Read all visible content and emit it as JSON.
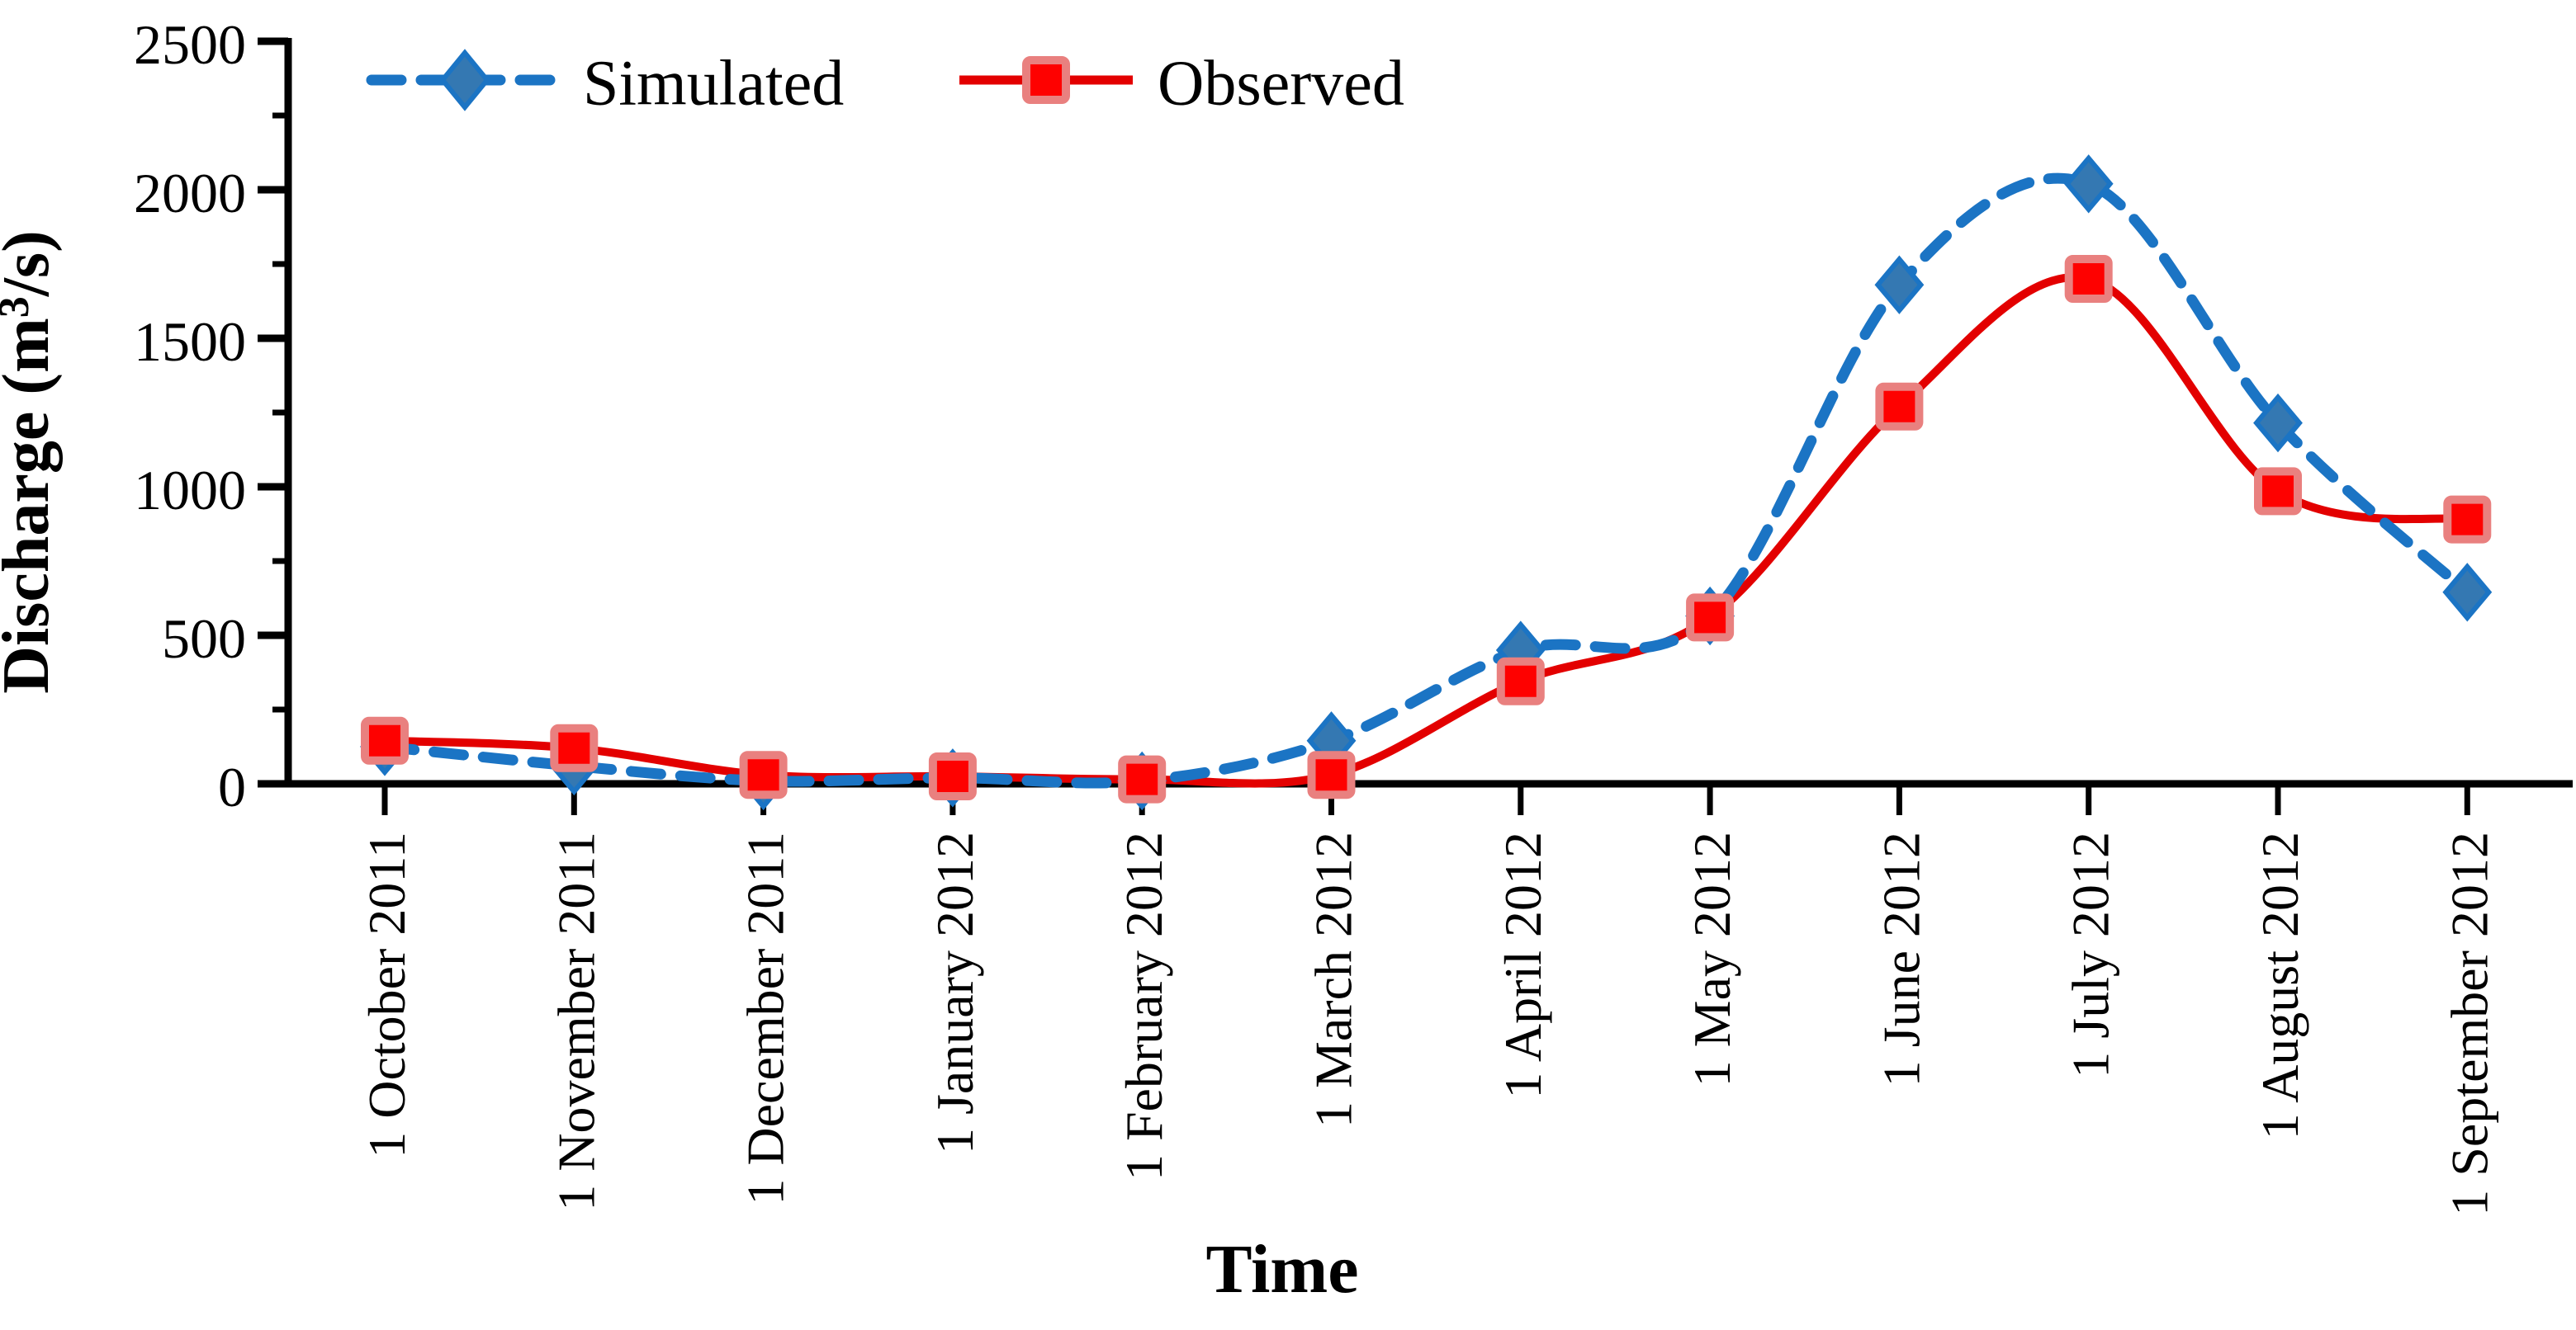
{
  "axes": {
    "y_title_parts": [
      "Discharge (m",
      "3",
      "/s)"
    ],
    "x_title": "Time"
  },
  "legend": {
    "position": "top",
    "items": [
      {
        "label": "Simulated"
      },
      {
        "label": "Observed"
      }
    ]
  },
  "chart_data": {
    "type": "line",
    "title": "",
    "xlabel": "Time",
    "ylabel": "Discharge (m³/s)",
    "ylim": [
      0,
      2500
    ],
    "y_major_ticks": [
      0,
      500,
      1000,
      1500,
      2000,
      2500
    ],
    "y_minor_ticks": [
      250,
      750,
      1250,
      1750,
      2250
    ],
    "grid": false,
    "legend_position": "top",
    "categories": [
      "1 October 2011",
      "1 November 2011",
      "1 December 2011",
      "1 January 2012",
      "1 February 2012",
      "1 March 2012",
      "1 April 2012",
      "1 May 2012",
      "1 June 2012",
      "1 July 2012",
      "1 August 2012",
      "1 September 2012"
    ],
    "series": [
      {
        "name": "Simulated",
        "line_style": "dashed",
        "marker": "diamond",
        "color": "#1B74C4",
        "marker_fill": "#3478B2",
        "marker_stroke": "#1B74C4",
        "values": [
          125,
          60,
          10,
          20,
          10,
          145,
          450,
          565,
          1680,
          2020,
          1215,
          645
        ]
      },
      {
        "name": "Observed",
        "line_style": "solid",
        "marker": "square",
        "color": "#E30000",
        "marker_fill": "#FE0100",
        "marker_stroke": "#E9807F",
        "values": [
          145,
          120,
          30,
          25,
          15,
          30,
          345,
          560,
          1270,
          1700,
          985,
          890
        ]
      }
    ],
    "axis_color": "#000000"
  }
}
